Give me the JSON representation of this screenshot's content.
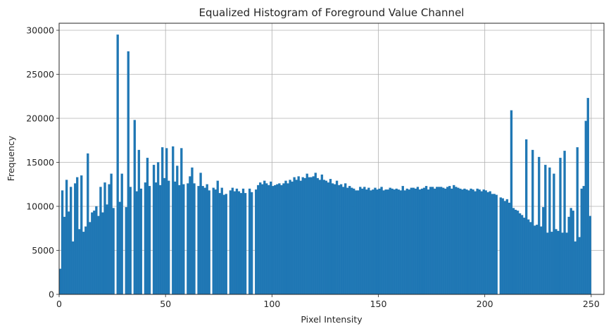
{
  "chart_data": {
    "type": "bar",
    "title": "Equalized Histogram of Foreground Value Channel",
    "xlabel": "Pixel Intensity",
    "ylabel": "Frequency",
    "xlim": [
      0,
      256
    ],
    "ylim": [
      0,
      30800
    ],
    "xticks": [
      0,
      50,
      100,
      150,
      200,
      250
    ],
    "yticks": [
      0,
      5000,
      10000,
      15000,
      20000,
      25000,
      30000
    ],
    "grid": true,
    "bar_color": "#1f77b4",
    "bins": [
      [
        0,
        2900
      ],
      [
        1,
        11800
      ],
      [
        2,
        8800
      ],
      [
        3,
        13000
      ],
      [
        4,
        9400
      ],
      [
        5,
        12200
      ],
      [
        6,
        6000
      ],
      [
        7,
        12600
      ],
      [
        8,
        13300
      ],
      [
        9,
        7400
      ],
      [
        10,
        13500
      ],
      [
        11,
        7100
      ],
      [
        12,
        7700
      ],
      [
        13,
        16000
      ],
      [
        14,
        8200
      ],
      [
        15,
        9300
      ],
      [
        16,
        9500
      ],
      [
        17,
        10000
      ],
      [
        18,
        8900
      ],
      [
        19,
        12200
      ],
      [
        20,
        9300
      ],
      [
        21,
        12700
      ],
      [
        22,
        10200
      ],
      [
        23,
        12500
      ],
      [
        24,
        13700
      ],
      [
        25,
        9800
      ],
      [
        27,
        29500
      ],
      [
        28,
        10500
      ],
      [
        29,
        13700
      ],
      [
        31,
        9900
      ],
      [
        32,
        27600
      ],
      [
        33,
        12200
      ],
      [
        35,
        19800
      ],
      [
        36,
        11700
      ],
      [
        37,
        16400
      ],
      [
        38,
        12000
      ],
      [
        40,
        12700
      ],
      [
        41,
        15500
      ],
      [
        42,
        12300
      ],
      [
        44,
        14700
      ],
      [
        45,
        12700
      ],
      [
        46,
        15000
      ],
      [
        47,
        12400
      ],
      [
        48,
        16700
      ],
      [
        49,
        13200
      ],
      [
        50,
        16600
      ],
      [
        51,
        12900
      ],
      [
        53,
        16800
      ],
      [
        54,
        12800
      ],
      [
        55,
        14600
      ],
      [
        56,
        12400
      ],
      [
        57,
        16600
      ],
      [
        58,
        12500
      ],
      [
        60,
        12600
      ],
      [
        61,
        13400
      ],
      [
        62,
        14400
      ],
      [
        63,
        12600
      ],
      [
        65,
        12300
      ],
      [
        66,
        13800
      ],
      [
        67,
        12300
      ],
      [
        68,
        12100
      ],
      [
        69,
        12500
      ],
      [
        70,
        11800
      ],
      [
        72,
        12100
      ],
      [
        73,
        11900
      ],
      [
        74,
        12900
      ],
      [
        75,
        11500
      ],
      [
        76,
        12100
      ],
      [
        77,
        11300
      ],
      [
        78,
        11400
      ],
      [
        80,
        11800
      ],
      [
        81,
        12100
      ],
      [
        82,
        11700
      ],
      [
        83,
        12000
      ],
      [
        84,
        11700
      ],
      [
        85,
        11500
      ],
      [
        86,
        12000
      ],
      [
        87,
        11500
      ],
      [
        89,
        12000
      ],
      [
        90,
        11600
      ],
      [
        92,
        11900
      ],
      [
        93,
        12400
      ],
      [
        94,
        12700
      ],
      [
        95,
        12500
      ],
      [
        96,
        12900
      ],
      [
        97,
        12600
      ],
      [
        98,
        12400
      ],
      [
        99,
        12800
      ],
      [
        100,
        12300
      ],
      [
        101,
        12400
      ],
      [
        102,
        12500
      ],
      [
        103,
        12600
      ],
      [
        104,
        12400
      ],
      [
        105,
        12600
      ],
      [
        106,
        12900
      ],
      [
        107,
        12600
      ],
      [
        108,
        13000
      ],
      [
        109,
        12800
      ],
      [
        110,
        13300
      ],
      [
        111,
        13000
      ],
      [
        112,
        13400
      ],
      [
        113,
        12900
      ],
      [
        114,
        13300
      ],
      [
        115,
        13200
      ],
      [
        116,
        13700
      ],
      [
        117,
        13300
      ],
      [
        118,
        13300
      ],
      [
        119,
        13400
      ],
      [
        120,
        13800
      ],
      [
        121,
        13200
      ],
      [
        122,
        13000
      ],
      [
        123,
        13600
      ],
      [
        124,
        13000
      ],
      [
        125,
        12900
      ],
      [
        126,
        12700
      ],
      [
        127,
        13100
      ],
      [
        128,
        12600
      ],
      [
        129,
        12500
      ],
      [
        130,
        12900
      ],
      [
        131,
        12400
      ],
      [
        132,
        12500
      ],
      [
        133,
        12200
      ],
      [
        134,
        12600
      ],
      [
        135,
        12100
      ],
      [
        136,
        12300
      ],
      [
        137,
        12100
      ],
      [
        138,
        12000
      ],
      [
        139,
        11800
      ],
      [
        140,
        11800
      ],
      [
        141,
        12200
      ],
      [
        142,
        12000
      ],
      [
        143,
        12200
      ],
      [
        144,
        11900
      ],
      [
        145,
        12100
      ],
      [
        146,
        11800
      ],
      [
        147,
        11900
      ],
      [
        148,
        12100
      ],
      [
        149,
        11900
      ],
      [
        150,
        12000
      ],
      [
        151,
        12200
      ],
      [
        152,
        11800
      ],
      [
        153,
        11900
      ],
      [
        154,
        11900
      ],
      [
        155,
        12100
      ],
      [
        156,
        12000
      ],
      [
        157,
        11900
      ],
      [
        158,
        12000
      ],
      [
        159,
        11900
      ],
      [
        160,
        11800
      ],
      [
        161,
        12300
      ],
      [
        162,
        11800
      ],
      [
        163,
        12000
      ],
      [
        164,
        11900
      ],
      [
        165,
        12100
      ],
      [
        166,
        12100
      ],
      [
        167,
        12000
      ],
      [
        168,
        12200
      ],
      [
        169,
        11900
      ],
      [
        170,
        12000
      ],
      [
        171,
        12100
      ],
      [
        172,
        12300
      ],
      [
        173,
        11900
      ],
      [
        174,
        12200
      ],
      [
        175,
        12200
      ],
      [
        176,
        12000
      ],
      [
        177,
        12200
      ],
      [
        178,
        12200
      ],
      [
        179,
        12200
      ],
      [
        180,
        12100
      ],
      [
        181,
        12000
      ],
      [
        182,
        12200
      ],
      [
        183,
        12300
      ],
      [
        184,
        12000
      ],
      [
        185,
        12400
      ],
      [
        186,
        12200
      ],
      [
        187,
        12100
      ],
      [
        188,
        12000
      ],
      [
        189,
        11900
      ],
      [
        190,
        12000
      ],
      [
        191,
        11900
      ],
      [
        192,
        11800
      ],
      [
        193,
        12000
      ],
      [
        194,
        11900
      ],
      [
        195,
        11700
      ],
      [
        196,
        12000
      ],
      [
        197,
        11900
      ],
      [
        198,
        11700
      ],
      [
        199,
        11900
      ],
      [
        200,
        11800
      ],
      [
        201,
        11600
      ],
      [
        202,
        11700
      ],
      [
        203,
        11400
      ],
      [
        204,
        11400
      ],
      [
        205,
        11300
      ],
      [
        207,
        11000
      ],
      [
        208,
        10900
      ],
      [
        209,
        10600
      ],
      [
        210,
        10800
      ],
      [
        211,
        10400
      ],
      [
        212,
        20900
      ],
      [
        213,
        9800
      ],
      [
        214,
        9600
      ],
      [
        215,
        9500
      ],
      [
        216,
        9200
      ],
      [
        217,
        9000
      ],
      [
        218,
        8700
      ],
      [
        219,
        17600
      ],
      [
        220,
        8500
      ],
      [
        221,
        8200
      ],
      [
        222,
        16400
      ],
      [
        223,
        7800
      ],
      [
        224,
        7900
      ],
      [
        225,
        15600
      ],
      [
        226,
        7700
      ],
      [
        227,
        9900
      ],
      [
        228,
        14700
      ],
      [
        229,
        7000
      ],
      [
        230,
        14400
      ],
      [
        231,
        7100
      ],
      [
        232,
        13700
      ],
      [
        233,
        7400
      ],
      [
        234,
        7200
      ],
      [
        235,
        15500
      ],
      [
        236,
        7000
      ],
      [
        237,
        16300
      ],
      [
        238,
        7000
      ],
      [
        239,
        8800
      ],
      [
        240,
        9800
      ],
      [
        241,
        9500
      ],
      [
        242,
        6000
      ],
      [
        243,
        16700
      ],
      [
        244,
        6500
      ],
      [
        245,
        12000
      ],
      [
        246,
        12300
      ],
      [
        247,
        19700
      ],
      [
        248,
        22300
      ],
      [
        249,
        8900
      ]
    ]
  }
}
